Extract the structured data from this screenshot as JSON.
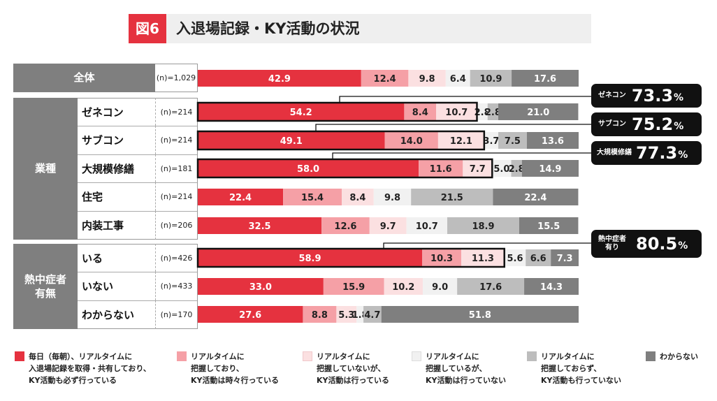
{
  "title": {
    "fig_no": "図6",
    "text": "入退場記録・KY活動の状況"
  },
  "groups": [
    {
      "label": "全体"
    },
    {
      "label": "業種"
    },
    {
      "label": "熱中症者\n有無"
    }
  ],
  "colors": [
    "#e5323f",
    "#f5a0a6",
    "#fbe0e1",
    "#f1f1f1",
    "#bdbdbd",
    "#7f7f7f"
  ],
  "chart_data": {
    "type": "bar",
    "orientation": "horizontal",
    "stacked": true,
    "xlim": [
      0,
      100
    ],
    "categories": [
      "全体",
      "ゼネコン",
      "サブコン",
      "大規模修繕",
      "住宅",
      "内装工事",
      "いる",
      "いない",
      "わからない"
    ],
    "sample_sizes": [
      "(n)=1,029",
      "(n)=214",
      "(n)=214",
      "(n)=181",
      "(n)=214",
      "(n)=206",
      "(n)=426",
      "(n)=433",
      "(n)=170"
    ],
    "series": [
      {
        "name": "毎日（毎朝）、リアルタイムに\n入退場記録を取得・共有しており、\nKY活動も必ず行っている",
        "values": [
          42.9,
          54.2,
          49.1,
          58.0,
          22.4,
          32.5,
          58.9,
          33.0,
          27.6
        ]
      },
      {
        "name": "リアルタイムに\n把握しており、\nKY活動は時々行っている",
        "values": [
          12.4,
          8.4,
          14.0,
          11.6,
          15.4,
          12.6,
          10.3,
          15.9,
          8.8
        ]
      },
      {
        "name": "リアルタイムに\n把握していないが、\nKY活動は行っている",
        "values": [
          9.8,
          10.7,
          12.1,
          7.7,
          8.4,
          9.7,
          11.3,
          10.2,
          5.3
        ]
      },
      {
        "name": "リアルタイムに\n把握しているが、\nKY活動は行っていない",
        "values": [
          6.4,
          2.8,
          3.7,
          5.0,
          9.8,
          10.7,
          5.6,
          9.0,
          1.8
        ]
      },
      {
        "name": "リアルタイムに\n把握しておらず、\nKY活動も行っていない",
        "values": [
          10.9,
          2.8,
          7.5,
          2.8,
          21.5,
          18.9,
          6.6,
          17.6,
          4.7
        ]
      },
      {
        "name": "わからない",
        "values": [
          17.6,
          21.0,
          13.6,
          14.9,
          22.4,
          15.5,
          7.3,
          14.3,
          51.8
        ]
      }
    ],
    "highlighted_rows": [
      {
        "row": 1,
        "label": "ゼネコン",
        "value": "73.3",
        "unit": "%"
      },
      {
        "row": 2,
        "label": "サブコン",
        "value": "75.2",
        "unit": "%"
      },
      {
        "row": 3,
        "label": "大規模修繕",
        "value": "77.3",
        "unit": "%"
      },
      {
        "row": 6,
        "label": "熱中症者\n有り",
        "value": "80.5",
        "unit": "%"
      }
    ]
  }
}
